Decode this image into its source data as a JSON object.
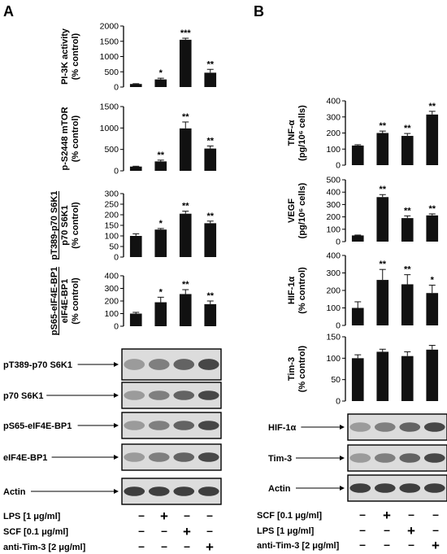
{
  "panels": {
    "A": {
      "letter": "A",
      "charts": [
        {
          "type": "bar",
          "ylabel": [
            "PI-3K activity",
            "(% control)"
          ],
          "ylim": [
            0,
            2000
          ],
          "yticks": [
            0,
            500,
            1000,
            1500,
            2000
          ],
          "categories": [
            "control",
            "LPS",
            "SCF",
            "anti-Tim-3"
          ],
          "values": [
            100,
            250,
            1550,
            470
          ],
          "errors": [
            10,
            40,
            50,
            110
          ],
          "significance": [
            "",
            "*",
            "***",
            "**"
          ]
        },
        {
          "type": "bar",
          "ylabel": [
            "p-S2448 mTOR",
            "(% control)"
          ],
          "ylim": [
            0,
            1500
          ],
          "yticks": [
            0,
            500,
            1000,
            1500
          ],
          "categories": [
            "control",
            "LPS",
            "SCF",
            "anti-Tim-3"
          ],
          "values": [
            100,
            220,
            990,
            520
          ],
          "errors": [
            8,
            30,
            150,
            60
          ],
          "significance": [
            "",
            "**",
            "**",
            "**"
          ]
        },
        {
          "type": "bar",
          "ylabel": [
            "pT389-p70 S6K1",
            "p70 S6K1",
            "(% control)"
          ],
          "ylim": [
            0,
            300
          ],
          "yticks": [
            0,
            50,
            100,
            150,
            200,
            250,
            300
          ],
          "categories": [
            "control",
            "LPS",
            "SCF",
            "anti-Tim-3"
          ],
          "values": [
            100,
            130,
            205,
            160
          ],
          "errors": [
            10,
            5,
            12,
            10
          ],
          "significance": [
            "",
            "*",
            "**",
            "**"
          ]
        },
        {
          "type": "bar",
          "ylabel": [
            "pS65-eIF4E-BP1",
            "eIF4E-BP1",
            "(% control)"
          ],
          "ylim": [
            0,
            400
          ],
          "yticks": [
            0,
            100,
            200,
            300,
            400
          ],
          "categories": [
            "control",
            "LPS",
            "SCF",
            "anti-Tim-3"
          ],
          "values": [
            100,
            190,
            255,
            175
          ],
          "errors": [
            10,
            40,
            35,
            25
          ],
          "significance": [
            "",
            "*",
            "**",
            "**"
          ]
        }
      ],
      "blots": [
        "pT389-p70 S6K1",
        "p70 S6K1",
        "pS65-eIF4E-BP1",
        "eIF4E-BP1",
        "Actin"
      ],
      "treatments": [
        {
          "label": "LPS [1 μg/ml]",
          "signs": [
            "–",
            "+",
            "–",
            "–"
          ]
        },
        {
          "label": "SCF [0.1 μg/ml]",
          "signs": [
            "–",
            "–",
            "+",
            "–"
          ]
        },
        {
          "label": "anti-Tim-3 [2 μg/ml]",
          "signs": [
            "–",
            "–",
            "–",
            "+"
          ]
        }
      ]
    },
    "B": {
      "letter": "B",
      "charts": [
        {
          "type": "bar",
          "ylabel": [
            "TNF-α",
            "(pg/10⁶ cells)"
          ],
          "ylim": [
            0,
            400
          ],
          "yticks": [
            0,
            100,
            200,
            300,
            400
          ],
          "categories": [
            "control",
            "SCF",
            "LPS",
            "anti-Tim-3"
          ],
          "values": [
            122,
            200,
            182,
            315
          ],
          "errors": [
            5,
            12,
            15,
            20
          ],
          "significance": [
            "",
            "**",
            "**",
            "**"
          ]
        },
        {
          "type": "bar",
          "ylabel": [
            "VEGF",
            "(pg/10⁶ cells)"
          ],
          "ylim": [
            0,
            500
          ],
          "yticks": [
            0,
            100,
            200,
            300,
            400,
            500
          ],
          "categories": [
            "control",
            "SCF",
            "LPS",
            "anti-Tim-3"
          ],
          "values": [
            50,
            360,
            190,
            212
          ],
          "errors": [
            3,
            20,
            18,
            12
          ],
          "significance": [
            "",
            "**",
            "**",
            "**"
          ]
        },
        {
          "type": "bar",
          "ylabel": [
            "HIF-1α",
            "(% control)"
          ],
          "ylim": [
            0,
            400
          ],
          "yticks": [
            0,
            100,
            200,
            300,
            400
          ],
          "categories": [
            "control",
            "SCF",
            "LPS",
            "anti-Tim-3"
          ],
          "values": [
            100,
            260,
            235,
            185
          ],
          "errors": [
            35,
            60,
            55,
            45
          ],
          "significance": [
            "",
            "**",
            "**",
            "*"
          ]
        },
        {
          "type": "bar",
          "ylabel": [
            "Tim-3",
            "(% control)"
          ],
          "ylim": [
            0,
            150
          ],
          "yticks": [
            0,
            50,
            100,
            150
          ],
          "categories": [
            "control",
            "SCF",
            "LPS",
            "anti-Tim-3"
          ],
          "values": [
            100,
            115,
            105,
            120
          ],
          "errors": [
            8,
            6,
            10,
            10
          ],
          "significance": [
            "",
            "",
            "",
            ""
          ]
        }
      ],
      "blots": [
        "HIF-1α",
        "Tim-3",
        "Actin"
      ],
      "treatments": [
        {
          "label": "SCF [0.1 μg/ml]",
          "signs": [
            "–",
            "+",
            "–",
            "–"
          ]
        },
        {
          "label": "LPS [1 μg/ml]",
          "signs": [
            "–",
            "–",
            "+",
            "–"
          ]
        },
        {
          "label": "anti-Tim-3 [2 μg/ml]",
          "signs": [
            "–",
            "–",
            "–",
            "+"
          ]
        }
      ]
    }
  }
}
